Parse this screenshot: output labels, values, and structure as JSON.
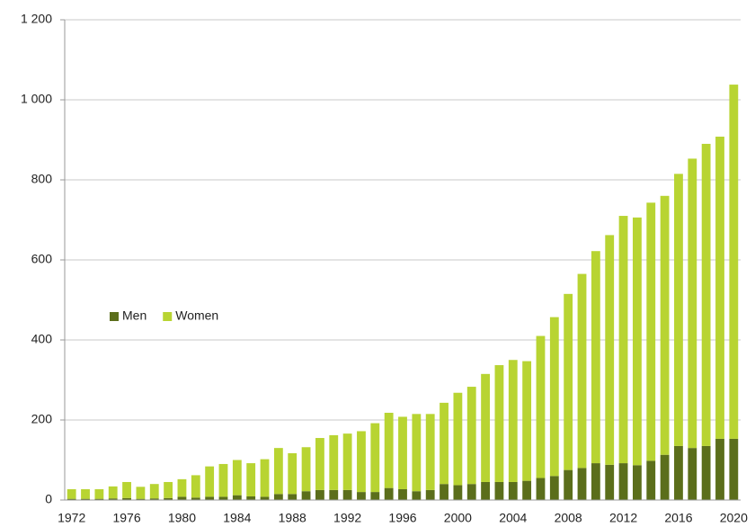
{
  "chart_data": {
    "type": "stacked-bar",
    "categories": [
      "1972",
      null,
      null,
      null,
      "1976",
      null,
      null,
      null,
      "1980",
      null,
      null,
      null,
      "1984",
      null,
      null,
      null,
      "1988",
      null,
      null,
      null,
      "1992",
      null,
      null,
      null,
      "1996",
      null,
      null,
      null,
      "2000",
      null,
      null,
      null,
      "2004",
      null,
      null,
      null,
      "2008",
      null,
      null,
      null,
      "2012",
      null,
      null,
      null,
      "2016",
      null,
      null,
      null,
      "2020"
    ],
    "series": [
      {
        "name": "Men",
        "color": "#5b6e1b",
        "values": [
          3,
          3,
          3,
          4,
          5,
          3,
          4,
          5,
          8,
          6,
          8,
          8,
          12,
          9,
          8,
          15,
          15,
          22,
          25,
          25,
          25,
          20,
          20,
          30,
          27,
          22,
          25,
          40,
          37,
          40,
          45,
          45,
          45,
          48,
          55,
          60,
          75,
          80,
          92,
          88,
          92,
          87,
          98,
          113,
          135,
          130,
          135,
          153,
          153
        ]
      },
      {
        "name": "Women",
        "color": "#b8d432",
        "values": [
          24,
          24,
          24,
          30,
          40,
          30,
          36,
          40,
          44,
          56,
          76,
          82,
          88,
          83,
          94,
          115,
          102,
          110,
          130,
          137,
          141,
          152,
          172,
          188,
          181,
          193,
          190,
          203,
          231,
          243,
          270,
          292,
          305,
          299,
          355,
          397,
          440,
          485,
          530,
          574,
          618,
          619,
          645,
          647,
          680,
          723,
          755,
          755,
          885
        ]
      }
    ],
    "ylim": [
      0,
      1200
    ],
    "yticks": [
      0,
      200,
      400,
      600,
      800,
      {
        "value": 1000,
        "label": "1 000"
      },
      {
        "value": 1200,
        "label": "1 200"
      }
    ],
    "grid": true,
    "legend": "center-left"
  }
}
